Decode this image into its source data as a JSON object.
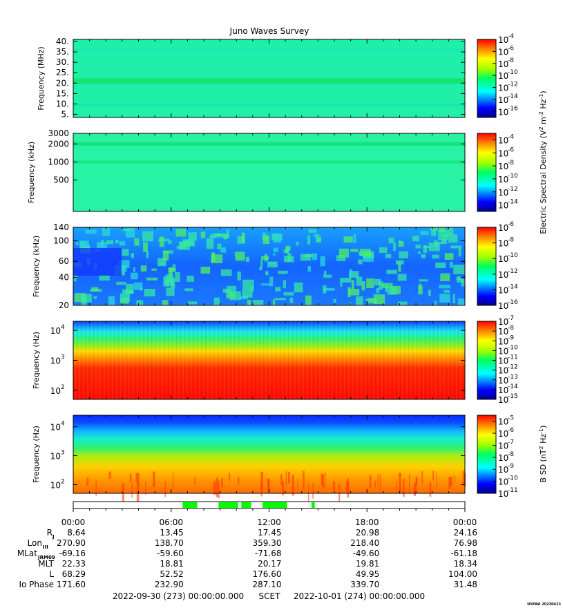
{
  "chart_data": {
    "type": "heatmap",
    "title": "Juno Waves Survey",
    "time_axis": {
      "labels": [
        "00:00",
        "06:00",
        "12:00",
        "18:00",
        "00:00"
      ],
      "start": "2022-09-30 (273) 00:00:00.000",
      "end": "2022-10-01 (274) 00:00:00.000",
      "scet_label": "SCET",
      "time_range_hours": [
        0,
        24
      ]
    },
    "panels": [
      {
        "ylabel": "Frequency (MHz)",
        "yscale": "linear",
        "ylim": [
          3.5,
          41
        ],
        "yticks": [
          "5.",
          "10.",
          "15.",
          "20.",
          "25.",
          "30.",
          "35.",
          "40."
        ],
        "ytick_values": [
          5,
          10,
          15,
          20,
          25,
          30,
          35,
          40
        ],
        "colorbar_ticks": [
          "-4",
          "-6",
          "-8",
          "-10",
          "-12",
          "-14",
          "-16"
        ],
        "colorbar_exponents": [
          -4,
          -6,
          -8,
          -10,
          -12,
          -14,
          -16
        ],
        "colorbar_range": [
          -17,
          -4
        ],
        "dominant_color": "#1ef0aa"
      },
      {
        "ylabel": "Frequency (kHz)",
        "yscale": "log",
        "ylim": [
          150,
          3000
        ],
        "yticks": [
          "3000",
          "2000",
          "1000",
          "500"
        ],
        "ytick_values": [
          3000,
          2000,
          1000,
          500
        ],
        "colorbar_ticks": [
          "-4",
          "-6",
          "-8",
          "-10",
          "-12",
          "-14"
        ],
        "colorbar_exponents": [
          -4,
          -6,
          -8,
          -10,
          -12,
          -14
        ],
        "colorbar_range": [
          -15,
          -3
        ],
        "dominant_color": "#27f2a5"
      },
      {
        "ylabel": "Frequency (kHz)",
        "yscale": "log",
        "ylim": [
          20,
          140
        ],
        "yticks": [
          "140",
          "100",
          "60",
          "40",
          "20"
        ],
        "ytick_values": [
          140,
          100,
          60,
          40,
          20
        ],
        "colorbar_ticks": [
          "-6",
          "-8",
          "-10",
          "-12",
          "-14",
          "-16"
        ],
        "colorbar_exponents": [
          -6,
          -8,
          -10,
          -12,
          -14,
          -16
        ],
        "colorbar_range": [
          -16,
          -6
        ],
        "dominant_color": "#1a6cff"
      },
      {
        "ylabel": "Frequency (Hz)",
        "yscale": "log",
        "ylim": [
          50,
          20000
        ],
        "yticks": [
          "4",
          "3",
          "2"
        ],
        "ytick_values": [
          10000,
          1000,
          100
        ],
        "colorbar_ticks": [
          "-7",
          "-8",
          "-9",
          "-10",
          "-11",
          "-12",
          "-13",
          "-14",
          "-15"
        ],
        "colorbar_exponents": [
          -7,
          -8,
          -9,
          -10,
          -11,
          -12,
          -13,
          -14,
          -15
        ],
        "colorbar_range": [
          -15,
          -7
        ],
        "dominant_color": "#ff1000"
      },
      {
        "ylabel": "Frequency (Hz)",
        "yscale": "log",
        "ylim": [
          50,
          25000
        ],
        "yticks": [
          "4",
          "3",
          "2"
        ],
        "ytick_values": [
          10000,
          1000,
          100
        ],
        "colorbar_ticks": [
          "-5",
          "-6",
          "-7",
          "-8",
          "-9",
          "-10",
          "-11"
        ],
        "colorbar_exponents": [
          -5,
          -6,
          -7,
          -8,
          -9,
          -10,
          -11
        ],
        "colorbar_range": [
          -11,
          -4.5
        ],
        "dominant_color": "#ffb400"
      }
    ],
    "colorbar_label_e": "Electric Spectral Density (V",
    "colorbar_label_b": "B SD (nT",
    "colorbar_label_b_tail": " Hz",
    "colorbar_base": "10",
    "ephemeris": {
      "rows": [
        {
          "label": "R",
          "sub": "J",
          "values": [
            "8.64",
            "13.45",
            "17.45",
            "20.98",
            "24.16"
          ]
        },
        {
          "label": "Lon",
          "sub": "III",
          "values": [
            "270.90",
            "138.70",
            "359.30",
            "218.40",
            "76.98"
          ]
        },
        {
          "label": "MLat",
          "sub": "JRM09",
          "values": [
            "-69.16",
            "-59.60",
            "-71.68",
            "-49.60",
            "-61.18"
          ]
        },
        {
          "label": "MLT",
          "sub": "",
          "values": [
            "22.33",
            "18.81",
            "20.17",
            "19.81",
            "18.34"
          ]
        },
        {
          "label": "L",
          "sub": "",
          "values": [
            "68.29",
            "52.52",
            "176.60",
            "49.95",
            "104.00"
          ]
        },
        {
          "label": "Io Phase",
          "sub": "",
          "values": [
            "171.60",
            "232.90",
            "287.10",
            "339.70",
            "31.48"
          ]
        }
      ]
    },
    "mode_bar": {
      "color": "#00ff00",
      "segments_hours": [
        [
          6.7,
          7.6
        ],
        [
          8.9,
          10.1
        ],
        [
          10.3,
          10.9
        ],
        [
          11.6,
          13.1
        ],
        [
          14.6,
          14.8
        ]
      ]
    },
    "watermark": "UIOWA 20230423"
  }
}
